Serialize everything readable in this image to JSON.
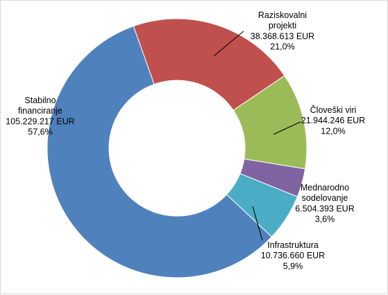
{
  "chart_data": {
    "type": "donut",
    "title": "",
    "slices": [
      {
        "name": "Raziskovalni projekti",
        "label_lines": [
          "Raziskovalni",
          "projekti"
        ],
        "value_text": "38.368.613 EUR",
        "value": 38368613,
        "percent_text": "21,0%",
        "percent": 21.0,
        "color": "#C0504D"
      },
      {
        "name": "Človeški viri",
        "label_lines": [
          "Človeški viri"
        ],
        "value_text": "21.944.246 EUR",
        "value": 21944246,
        "percent_text": "12,0%",
        "percent": 12.0,
        "color": "#9BBB59"
      },
      {
        "name": "Mednarodno sodelovanje",
        "label_lines": [
          "Mednarodno",
          "sodelovanje"
        ],
        "value_text": "6.504.393 EUR",
        "value": 6504393,
        "percent_text": "3,6%",
        "percent": 3.6,
        "color": "#8064A2"
      },
      {
        "name": "Infrastruktura",
        "label_lines": [
          "Infrastruktura"
        ],
        "value_text": "10.736.660 EUR",
        "value": 10736660,
        "percent_text": "5,9%",
        "percent": 5.9,
        "color": "#4BACC6"
      },
      {
        "name": "Stabilno financiranje",
        "label_lines": [
          "Stabilno",
          "financiranje"
        ],
        "value_text": "105.229.217 EUR",
        "value": 105229217,
        "percent_text": "57,6%",
        "percent": 57.6,
        "color": "#4F81BD"
      }
    ]
  }
}
